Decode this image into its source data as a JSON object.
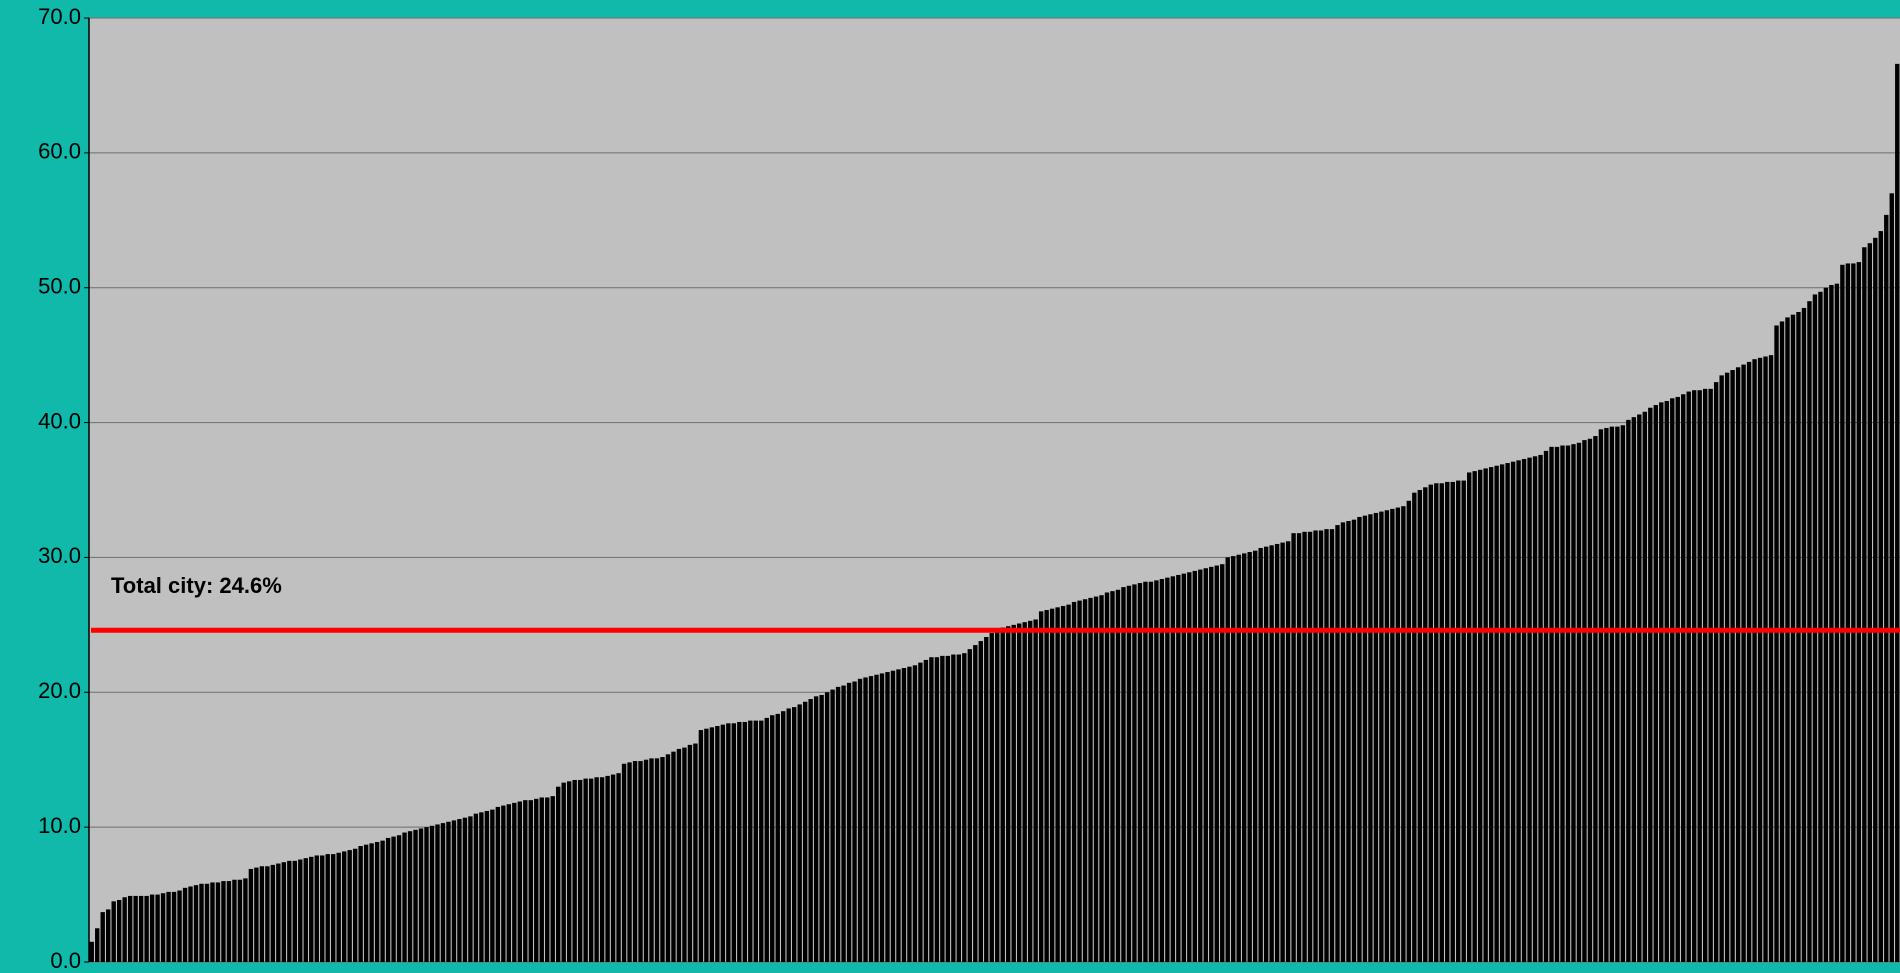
{
  "chart_data": {
    "type": "bar",
    "color": "#000000",
    "values": [
      1.5,
      2.5,
      3.7,
      3.9,
      4.5,
      4.6,
      4.8,
      4.9,
      4.9,
      4.9,
      4.9,
      5.0,
      5.0,
      5.1,
      5.2,
      5.2,
      5.3,
      5.5,
      5.6,
      5.7,
      5.8,
      5.8,
      5.9,
      5.9,
      6.0,
      6.0,
      6.1,
      6.1,
      6.2,
      6.9,
      7.0,
      7.1,
      7.1,
      7.2,
      7.3,
      7.4,
      7.5,
      7.5,
      7.6,
      7.7,
      7.8,
      7.9,
      7.9,
      8.0,
      8.0,
      8.1,
      8.2,
      8.3,
      8.4,
      8.6,
      8.7,
      8.8,
      8.9,
      9.0,
      9.2,
      9.3,
      9.4,
      9.6,
      9.7,
      9.8,
      9.9,
      10.0,
      10.1,
      10.2,
      10.3,
      10.4,
      10.5,
      10.6,
      10.7,
      10.8,
      11.0,
      11.1,
      11.2,
      11.3,
      11.5,
      11.6,
      11.7,
      11.8,
      11.9,
      12.0,
      12.0,
      12.1,
      12.2,
      12.2,
      12.3,
      13.0,
      13.3,
      13.4,
      13.5,
      13.5,
      13.6,
      13.6,
      13.7,
      13.7,
      13.8,
      13.9,
      14.0,
      14.7,
      14.8,
      14.9,
      14.9,
      15.0,
      15.1,
      15.1,
      15.2,
      15.4,
      15.6,
      15.8,
      15.9,
      16.1,
      16.2,
      17.2,
      17.3,
      17.4,
      17.5,
      17.6,
      17.7,
      17.7,
      17.8,
      17.8,
      17.9,
      17.9,
      17.9,
      18.1,
      18.3,
      18.4,
      18.6,
      18.8,
      18.9,
      19.1,
      19.3,
      19.5,
      19.7,
      19.8,
      20.0,
      20.2,
      20.4,
      20.5,
      20.7,
      20.8,
      21.0,
      21.1,
      21.2,
      21.3,
      21.4,
      21.5,
      21.6,
      21.7,
      21.8,
      21.9,
      22.0,
      22.2,
      22.4,
      22.6,
      22.6,
      22.7,
      22.7,
      22.8,
      22.8,
      22.9,
      23.2,
      23.5,
      23.8,
      24.1,
      24.4,
      24.6,
      24.8,
      24.9,
      25.0,
      25.1,
      25.2,
      25.3,
      25.4,
      26.0,
      26.1,
      26.2,
      26.3,
      26.4,
      26.5,
      26.7,
      26.8,
      26.9,
      27.0,
      27.1,
      27.2,
      27.4,
      27.5,
      27.6,
      27.8,
      27.9,
      28.0,
      28.1,
      28.2,
      28.2,
      28.3,
      28.4,
      28.5,
      28.6,
      28.7,
      28.8,
      28.9,
      29.0,
      29.1,
      29.2,
      29.3,
      29.4,
      29.5,
      30.0,
      30.1,
      30.2,
      30.3,
      30.4,
      30.5,
      30.7,
      30.8,
      30.9,
      31.0,
      31.1,
      31.2,
      31.8,
      31.8,
      31.9,
      31.9,
      32.0,
      32.0,
      32.1,
      32.1,
      32.4,
      32.6,
      32.7,
      32.8,
      33.0,
      33.1,
      33.2,
      33.3,
      33.4,
      33.5,
      33.6,
      33.7,
      33.8,
      34.2,
      34.8,
      35.0,
      35.2,
      35.4,
      35.5,
      35.5,
      35.6,
      35.6,
      35.7,
      35.7,
      36.3,
      36.4,
      36.5,
      36.6,
      36.7,
      36.8,
      36.9,
      37.0,
      37.1,
      37.2,
      37.3,
      37.4,
      37.5,
      37.6,
      37.9,
      38.2,
      38.2,
      38.3,
      38.3,
      38.4,
      38.5,
      38.7,
      38.8,
      39.0,
      39.5,
      39.6,
      39.7,
      39.7,
      39.8,
      40.2,
      40.4,
      40.6,
      40.8,
      41.1,
      41.3,
      41.5,
      41.6,
      41.8,
      41.9,
      42.1,
      42.3,
      42.4,
      42.4,
      42.5,
      42.5,
      43.0,
      43.5,
      43.7,
      43.9,
      44.1,
      44.3,
      44.5,
      44.7,
      44.8,
      44.9,
      45.0,
      47.2,
      47.5,
      47.8,
      48.0,
      48.2,
      48.5,
      49.0,
      49.5,
      49.7,
      50.0,
      50.2,
      50.3,
      51.7,
      51.8,
      51.8,
      51.9,
      53.0,
      53.3,
      53.7,
      54.2,
      55.4,
      57.0,
      66.6
    ],
    "ylim": [
      0,
      70
    ],
    "yticks": [
      {
        "value": 0,
        "label": "0.0"
      },
      {
        "value": 10,
        "label": "10.0"
      },
      {
        "value": 20,
        "label": "20.0"
      },
      {
        "value": 30,
        "label": "30.0"
      },
      {
        "value": 40,
        "label": "40.0"
      },
      {
        "value": 50,
        "label": "50.0"
      },
      {
        "value": 60,
        "label": "60.0"
      },
      {
        "value": 70,
        "label": "70.0"
      }
    ],
    "grid": true,
    "reference_line": {
      "value": 24.6,
      "label": "Total city: 24.6%",
      "color": "#ff0000"
    }
  }
}
